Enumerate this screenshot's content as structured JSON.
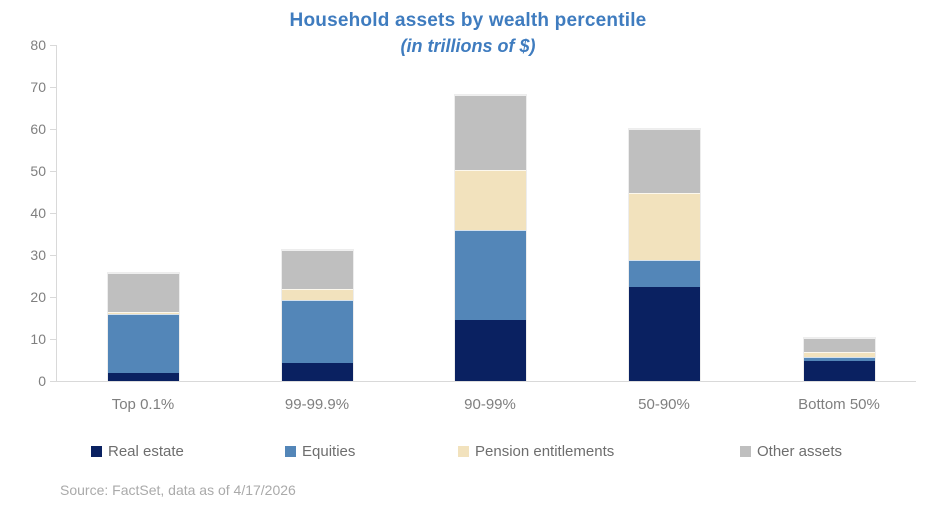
{
  "title": "Household assets by wealth percentile",
  "subtitle": "(in trillions of $)",
  "source_note": "Source: FactSet, data as of 4/17/2026",
  "colors": {
    "title_text": "#3f7cbf",
    "axis_line": "#d9d9d9",
    "tick_label": "#7f7f7f",
    "category_label": "#7f7f7f",
    "legend_label": "#6e6e6e",
    "source_text": "#aaaaaa"
  },
  "chart_data": {
    "type": "bar",
    "stacked": true,
    "title": "Household assets by wealth percentile",
    "subtitle": "(in trillions of $)",
    "categories": [
      "Top 0.1%",
      "99-99.9%",
      "90-99%",
      "50-90%",
      "Bottom 50%"
    ],
    "series": [
      {
        "name": "Real estate",
        "color": "#0a2161",
        "values": [
          2.0,
          4.4,
          14.5,
          22.3,
          4.8
        ]
      },
      {
        "name": "Equities",
        "color": "#5386b8",
        "values": [
          14.0,
          15.0,
          21.5,
          6.4,
          1.0
        ]
      },
      {
        "name": "Pension entitlements",
        "color": "#f2e2bd",
        "values": [
          0.5,
          2.4,
          14.3,
          16.0,
          1.0
        ]
      },
      {
        "name": "Other assets",
        "color": "#bfbfbf",
        "values": [
          9.3,
          9.4,
          17.7,
          15.4,
          3.5
        ]
      }
    ],
    "totals": [
      25.8,
      31.2,
      68.0,
      60.1,
      10.3
    ],
    "ylim": [
      0,
      80
    ],
    "yticks": [
      0,
      10,
      20,
      30,
      40,
      50,
      60,
      70,
      80
    ],
    "grid": false,
    "legend_position": "bottom"
  }
}
